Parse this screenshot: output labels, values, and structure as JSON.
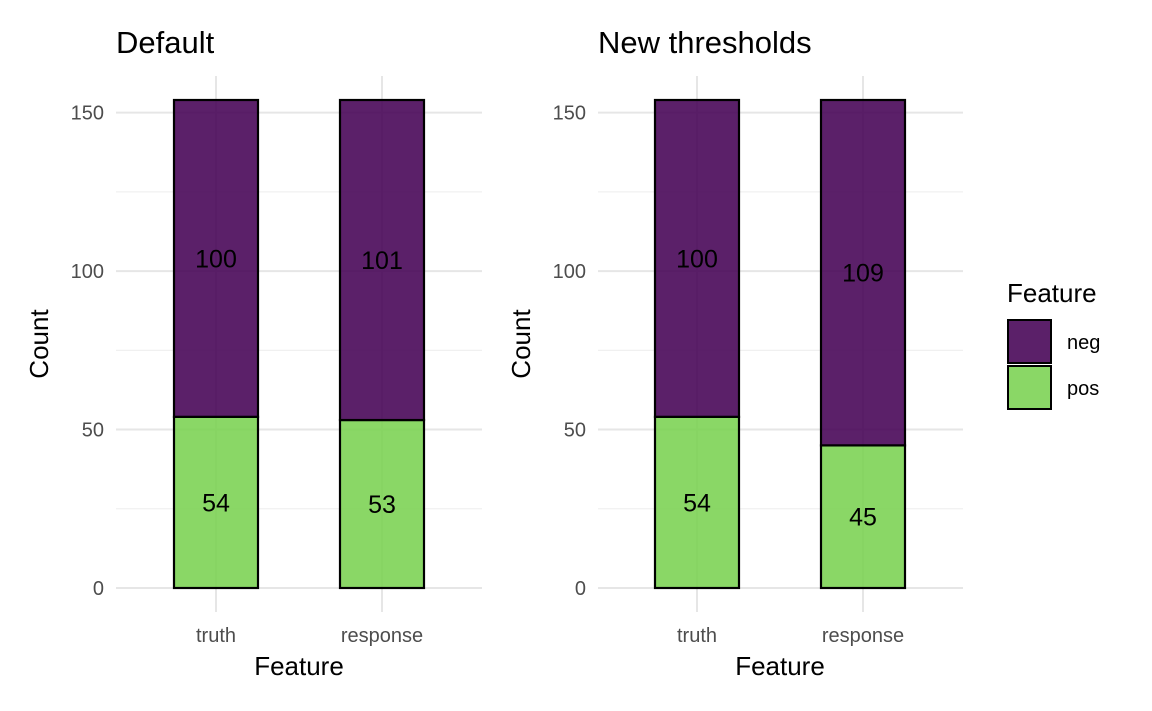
{
  "chart_data": [
    {
      "type": "bar",
      "stacked": true,
      "title": "Default",
      "xlabel": "Feature",
      "ylabel": "Count",
      "categories": [
        "truth",
        "response"
      ],
      "series": [
        {
          "name": "pos",
          "values": [
            54,
            53
          ]
        },
        {
          "name": "neg",
          "values": [
            100,
            101
          ]
        }
      ],
      "ylim": [
        0,
        154
      ],
      "yticks": [
        0,
        50,
        100,
        150
      ]
    },
    {
      "type": "bar",
      "stacked": true,
      "title": "New thresholds",
      "xlabel": "Feature",
      "ylabel": "Count",
      "categories": [
        "truth",
        "response"
      ],
      "series": [
        {
          "name": "pos",
          "values": [
            54,
            45
          ]
        },
        {
          "name": "neg",
          "values": [
            100,
            109
          ]
        }
      ],
      "ylim": [
        0,
        154
      ],
      "yticks": [
        0,
        50,
        100,
        150
      ]
    }
  ],
  "legend": {
    "title": "Feature",
    "placement": "right",
    "items": [
      {
        "label": "neg",
        "color": "#440154"
      },
      {
        "label": "pos",
        "color": "#7ad151"
      }
    ]
  },
  "colors": {
    "neg": "#440154",
    "pos": "#7ad151",
    "bar_opacity": 0.88
  }
}
